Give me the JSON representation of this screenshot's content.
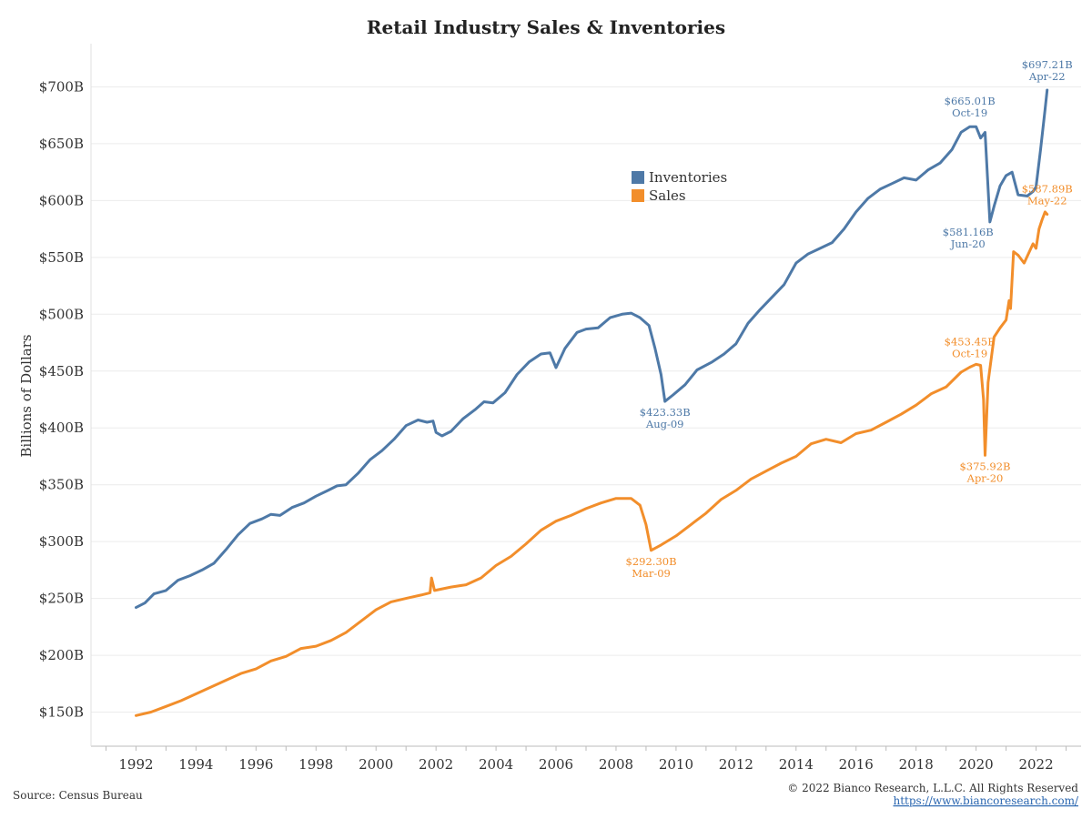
{
  "chart_data": {
    "type": "line",
    "title": "Retail Industry Sales & Inventories",
    "ylabel": "Billions of Dollars",
    "xlabel": "",
    "xlim": [
      1990.5,
      2023.5
    ],
    "ylim": [
      120,
      730
    ],
    "grid": "horizontal",
    "legend_position": "center",
    "yticks": [
      {
        "value": 150,
        "label": "$150B"
      },
      {
        "value": 200,
        "label": "$200B"
      },
      {
        "value": 250,
        "label": "$250B"
      },
      {
        "value": 300,
        "label": "$300B"
      },
      {
        "value": 350,
        "label": "$350B"
      },
      {
        "value": 400,
        "label": "$400B"
      },
      {
        "value": 450,
        "label": "$450B"
      },
      {
        "value": 500,
        "label": "$500B"
      },
      {
        "value": 550,
        "label": "$550B"
      },
      {
        "value": 600,
        "label": "$600B"
      },
      {
        "value": 650,
        "label": "$650B"
      },
      {
        "value": 700,
        "label": "$700B"
      }
    ],
    "xticks": [
      {
        "value": 1992,
        "label": "1992"
      },
      {
        "value": 1994,
        "label": "1994"
      },
      {
        "value": 1996,
        "label": "1996"
      },
      {
        "value": 1998,
        "label": "1998"
      },
      {
        "value": 2000,
        "label": "2000"
      },
      {
        "value": 2002,
        "label": "2002"
      },
      {
        "value": 2004,
        "label": "2004"
      },
      {
        "value": 2006,
        "label": "2006"
      },
      {
        "value": 2008,
        "label": "2008"
      },
      {
        "value": 2010,
        "label": "2010"
      },
      {
        "value": 2012,
        "label": "2012"
      },
      {
        "value": 2014,
        "label": "2014"
      },
      {
        "value": 2016,
        "label": "2016"
      },
      {
        "value": 2018,
        "label": "2018"
      },
      {
        "value": 2020,
        "label": "2020"
      },
      {
        "value": 2022,
        "label": "2022"
      }
    ],
    "series": [
      {
        "name": "Inventories",
        "color": "#4e79a7",
        "points": [
          [
            1992.0,
            242
          ],
          [
            1992.3,
            246
          ],
          [
            1992.6,
            254
          ],
          [
            1993.0,
            257
          ],
          [
            1993.4,
            266
          ],
          [
            1993.8,
            270
          ],
          [
            1994.2,
            275
          ],
          [
            1994.6,
            281
          ],
          [
            1995.0,
            293
          ],
          [
            1995.4,
            306
          ],
          [
            1995.8,
            316
          ],
          [
            1996.2,
            320
          ],
          [
            1996.5,
            324
          ],
          [
            1996.8,
            323
          ],
          [
            1997.2,
            330
          ],
          [
            1997.6,
            334
          ],
          [
            1998.0,
            340
          ],
          [
            1998.4,
            345
          ],
          [
            1998.7,
            349
          ],
          [
            1999.0,
            350
          ],
          [
            1999.4,
            360
          ],
          [
            1999.8,
            372
          ],
          [
            2000.2,
            380
          ],
          [
            2000.6,
            390
          ],
          [
            2001.0,
            402
          ],
          [
            2001.4,
            407
          ],
          [
            2001.7,
            405
          ],
          [
            2001.9,
            406
          ],
          [
            2002.0,
            396
          ],
          [
            2002.2,
            393
          ],
          [
            2002.5,
            397
          ],
          [
            2002.9,
            408
          ],
          [
            2003.3,
            416
          ],
          [
            2003.6,
            423
          ],
          [
            2003.9,
            422
          ],
          [
            2004.3,
            431
          ],
          [
            2004.7,
            447
          ],
          [
            2005.1,
            458
          ],
          [
            2005.5,
            465
          ],
          [
            2005.8,
            466
          ],
          [
            2006.0,
            453
          ],
          [
            2006.3,
            470
          ],
          [
            2006.7,
            484
          ],
          [
            2007.0,
            487
          ],
          [
            2007.4,
            488
          ],
          [
            2007.8,
            497
          ],
          [
            2008.2,
            500
          ],
          [
            2008.5,
            501
          ],
          [
            2008.8,
            497
          ],
          [
            2009.1,
            490
          ],
          [
            2009.3,
            470
          ],
          [
            2009.5,
            447
          ],
          [
            2009.63,
            423.3
          ],
          [
            2009.9,
            429
          ],
          [
            2010.3,
            438
          ],
          [
            2010.7,
            451
          ],
          [
            2011.2,
            458
          ],
          [
            2011.6,
            465
          ],
          [
            2012.0,
            474
          ],
          [
            2012.4,
            492
          ],
          [
            2012.8,
            504
          ],
          [
            2013.2,
            515
          ],
          [
            2013.6,
            526
          ],
          [
            2014.0,
            545
          ],
          [
            2014.4,
            553
          ],
          [
            2014.8,
            558
          ],
          [
            2015.2,
            563
          ],
          [
            2015.6,
            575
          ],
          [
            2016.0,
            590
          ],
          [
            2016.4,
            602
          ],
          [
            2016.8,
            610
          ],
          [
            2017.2,
            615
          ],
          [
            2017.6,
            620
          ],
          [
            2018.0,
            618
          ],
          [
            2018.4,
            627
          ],
          [
            2018.8,
            633
          ],
          [
            2019.2,
            645
          ],
          [
            2019.5,
            660
          ],
          [
            2019.79,
            665
          ],
          [
            2020.0,
            665
          ],
          [
            2020.15,
            655
          ],
          [
            2020.3,
            660
          ],
          [
            2020.45,
            587
          ],
          [
            2020.46,
            581.2
          ],
          [
            2020.6,
            595
          ],
          [
            2020.8,
            613
          ],
          [
            2021.0,
            622
          ],
          [
            2021.2,
            625
          ],
          [
            2021.4,
            605
          ],
          [
            2021.7,
            604
          ],
          [
            2021.9,
            608
          ],
          [
            2022.0,
            612
          ],
          [
            2022.15,
            645
          ],
          [
            2022.3,
            680
          ],
          [
            2022.37,
            697.2
          ]
        ]
      },
      {
        "name": "Sales",
        "color": "#f28e2b",
        "points": [
          [
            1992.0,
            147
          ],
          [
            1992.5,
            150
          ],
          [
            1993.0,
            155
          ],
          [
            1993.5,
            160
          ],
          [
            1994.0,
            166
          ],
          [
            1994.5,
            172
          ],
          [
            1995.0,
            178
          ],
          [
            1995.5,
            184
          ],
          [
            1996.0,
            188
          ],
          [
            1996.5,
            195
          ],
          [
            1997.0,
            199
          ],
          [
            1997.5,
            206
          ],
          [
            1998.0,
            208
          ],
          [
            1998.5,
            213
          ],
          [
            1999.0,
            220
          ],
          [
            1999.5,
            230
          ],
          [
            2000.0,
            240
          ],
          [
            2000.5,
            247
          ],
          [
            2001.0,
            250
          ],
          [
            2001.5,
            253
          ],
          [
            2001.8,
            255
          ],
          [
            2001.85,
            268
          ],
          [
            2001.95,
            257
          ],
          [
            2002.5,
            260
          ],
          [
            2003.0,
            262
          ],
          [
            2003.5,
            268
          ],
          [
            2004.0,
            279
          ],
          [
            2004.5,
            287
          ],
          [
            2005.0,
            298
          ],
          [
            2005.5,
            310
          ],
          [
            2006.0,
            318
          ],
          [
            2006.5,
            323
          ],
          [
            2007.0,
            329
          ],
          [
            2007.5,
            334
          ],
          [
            2008.0,
            338
          ],
          [
            2008.5,
            338
          ],
          [
            2008.8,
            332
          ],
          [
            2009.0,
            315
          ],
          [
            2009.17,
            292.3
          ],
          [
            2009.5,
            297
          ],
          [
            2010.0,
            305
          ],
          [
            2010.5,
            315
          ],
          [
            2011.0,
            325
          ],
          [
            2011.5,
            337
          ],
          [
            2012.0,
            345
          ],
          [
            2012.5,
            355
          ],
          [
            2013.0,
            362
          ],
          [
            2013.5,
            369
          ],
          [
            2014.0,
            375
          ],
          [
            2014.5,
            386
          ],
          [
            2015.0,
            390
          ],
          [
            2015.5,
            387
          ],
          [
            2016.0,
            395
          ],
          [
            2016.5,
            398
          ],
          [
            2017.0,
            405
          ],
          [
            2017.5,
            412
          ],
          [
            2018.0,
            420
          ],
          [
            2018.5,
            430
          ],
          [
            2019.0,
            436
          ],
          [
            2019.5,
            449
          ],
          [
            2019.79,
            453.45
          ],
          [
            2020.0,
            456
          ],
          [
            2020.15,
            455
          ],
          [
            2020.25,
            425
          ],
          [
            2020.3,
            375.92
          ],
          [
            2020.4,
            440
          ],
          [
            2020.6,
            480
          ],
          [
            2020.8,
            488
          ],
          [
            2021.0,
            495
          ],
          [
            2021.1,
            512
          ],
          [
            2021.15,
            505
          ],
          [
            2021.25,
            555
          ],
          [
            2021.4,
            552
          ],
          [
            2021.6,
            545
          ],
          [
            2021.9,
            562
          ],
          [
            2022.0,
            558
          ],
          [
            2022.1,
            575
          ],
          [
            2022.2,
            583
          ],
          [
            2022.3,
            590
          ],
          [
            2022.37,
            587.89
          ]
        ]
      }
    ],
    "annotations": [
      {
        "series": 0,
        "x": 2009.63,
        "y": 423.3,
        "value": "$423.33B",
        "date": "Aug-09",
        "position": "below"
      },
      {
        "series": 0,
        "x": 2019.79,
        "y": 665,
        "value": "$665.01B",
        "date": "Oct-19",
        "position": "above"
      },
      {
        "series": 0,
        "x": 2020.46,
        "y": 581.2,
        "value": "$581.16B",
        "date": "Jun-20",
        "position": "below-left"
      },
      {
        "series": 0,
        "x": 2022.37,
        "y": 697.2,
        "value": "$697.21B",
        "date": "Apr-22",
        "position": "above"
      },
      {
        "series": 1,
        "x": 2009.17,
        "y": 292.3,
        "value": "$292.30B",
        "date": "Mar-09",
        "position": "below"
      },
      {
        "series": 1,
        "x": 2019.79,
        "y": 453.45,
        "value": "$453.45B",
        "date": "Oct-19",
        "position": "above"
      },
      {
        "series": 1,
        "x": 2020.3,
        "y": 375.92,
        "value": "$375.92B",
        "date": "Apr-20",
        "position": "below"
      },
      {
        "series": 1,
        "x": 2022.37,
        "y": 587.89,
        "value": "$587.89B",
        "date": "May-22",
        "position": "above"
      }
    ]
  },
  "footer": {
    "source": "Source: Census Bureau",
    "copyright": "© 2022 Bianco Research, L.L.C. All Rights Reserved",
    "url": "https://www.biancoresearch.com/"
  }
}
